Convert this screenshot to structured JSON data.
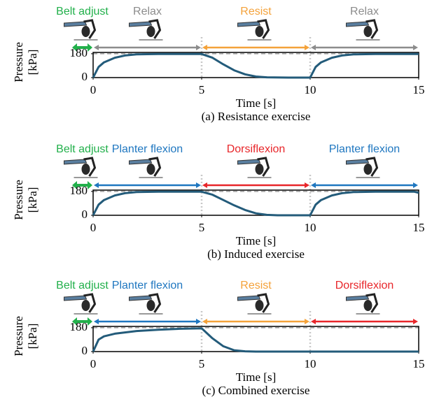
{
  "chart_data": [
    {
      "type": "line",
      "caption": "(a) Resistance exercise",
      "xlabel": "Time [s]",
      "ylabel": [
        "Pressure",
        "[kPa]"
      ],
      "xlim": [
        0,
        15
      ],
      "xticks": [
        0,
        5,
        10,
        15
      ],
      "ylim": [
        0,
        190
      ],
      "yticks": [
        0,
        180
      ],
      "target": 180,
      "color": "#235b7a",
      "x": [
        0,
        0.25,
        0.5,
        1,
        1.5,
        2,
        3,
        4,
        5,
        5.5,
        6,
        6.5,
        7,
        7.5,
        8,
        9,
        10,
        10.25,
        10.5,
        11,
        11.5,
        12,
        13,
        14,
        15
      ],
      "values": [
        0,
        80,
        115,
        150,
        168,
        175,
        178,
        178,
        178,
        150,
        100,
        55,
        25,
        8,
        2,
        0,
        0,
        80,
        115,
        150,
        168,
        175,
        178,
        178,
        178
      ],
      "phases": [
        {
          "label": "Belt adjust",
          "color": "#22b04b",
          "start": -1,
          "end": 0
        },
        {
          "label": "Relax",
          "color": "#8c8c8c",
          "start": 0,
          "end": 5
        },
        {
          "label": "Resist",
          "color": "#f4a23a",
          "start": 5,
          "end": 10
        },
        {
          "label": "Relax",
          "color": "#8c8c8c",
          "start": 10,
          "end": 15
        }
      ]
    },
    {
      "type": "line",
      "caption": "(b) Induced exercise",
      "xlabel": "Time [s]",
      "ylabel": [
        "Pressure",
        "[kPa]"
      ],
      "xlim": [
        0,
        15
      ],
      "xticks": [
        0,
        5,
        10,
        15
      ],
      "ylim": [
        0,
        190
      ],
      "yticks": [
        0,
        180
      ],
      "target": 180,
      "color": "#235b7a",
      "x": [
        0,
        0.25,
        0.5,
        1,
        1.5,
        2,
        3,
        4,
        5,
        5.5,
        6,
        6.5,
        7,
        7.5,
        8,
        8.5,
        10,
        10.25,
        10.5,
        11,
        11.5,
        12,
        13,
        14,
        14.8,
        15
      ],
      "values": [
        0,
        80,
        115,
        150,
        168,
        175,
        178,
        178,
        178,
        155,
        115,
        75,
        40,
        15,
        3,
        0,
        0,
        80,
        115,
        150,
        168,
        175,
        178,
        178,
        178,
        170
      ],
      "phases": [
        {
          "label": "Belt adjust",
          "color": "#22b04b",
          "start": -1,
          "end": 0
        },
        {
          "label": "Planter flexion",
          "color": "#1f77c0",
          "start": 0,
          "end": 5
        },
        {
          "label": "Dorsiflexion",
          "color": "#e8262a",
          "start": 5,
          "end": 10
        },
        {
          "label": "Planter flexion",
          "color": "#1f77c0",
          "start": 10,
          "end": 15
        }
      ]
    },
    {
      "type": "line",
      "caption": "(c) Combined exercise",
      "xlabel": "Time [s]",
      "ylabel": [
        "Pressure",
        "[kPa]"
      ],
      "xlim": [
        0,
        15
      ],
      "xticks": [
        0,
        5,
        10,
        15
      ],
      "ylim": [
        0,
        190
      ],
      "yticks": [
        0,
        180
      ],
      "target": 180,
      "color": "#235b7a",
      "x": [
        0,
        0.25,
        0.5,
        1,
        2,
        3,
        4,
        5,
        5.5,
        6,
        6.5,
        7,
        7.5,
        15
      ],
      "values": [
        0,
        90,
        115,
        135,
        155,
        165,
        172,
        176,
        100,
        40,
        10,
        2,
        0,
        0
      ],
      "phases": [
        {
          "label": "Belt adjust",
          "color": "#22b04b",
          "start": -1,
          "end": 0
        },
        {
          "label": "Planter flexion",
          "color": "#1f77c0",
          "start": 0,
          "end": 5
        },
        {
          "label": "Resist",
          "color": "#f4a23a",
          "start": 5,
          "end": 10
        },
        {
          "label": "Dorsiflexion",
          "color": "#e8262a",
          "start": 10,
          "end": 15
        }
      ]
    }
  ]
}
